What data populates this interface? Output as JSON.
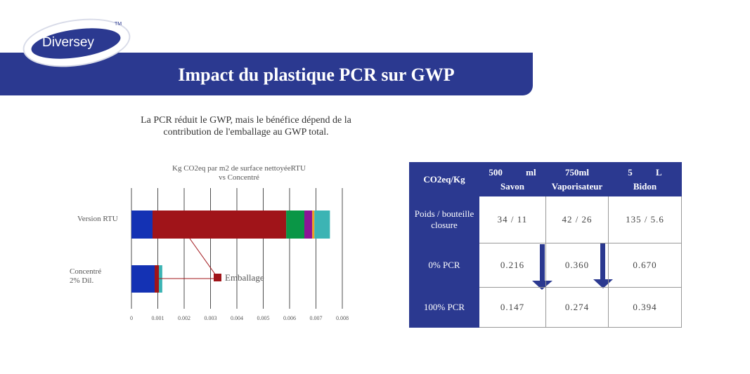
{
  "header": {
    "logo": "Diversey",
    "trademark": "TM",
    "title": "Impact du plastique PCR sur GWP",
    "subtitle": "La PCR réduit le GWP, mais le bénéfice dépend de la contribution de l'emballage au GWP total."
  },
  "chart_data": {
    "type": "stacked-hbar",
    "title": "Kg CO2eq par m2 de surface nettoyéeRTU vs Concentré",
    "categories": [
      "Version RTU",
      "Concentré 2% Dil."
    ],
    "series": [
      {
        "color": "#1432b4",
        "values": [
          0.0008,
          0.00088
        ]
      },
      {
        "name": "Emballage",
        "color": "#a01419",
        "values": [
          0.00507,
          0.00016
        ]
      },
      {
        "color": "#0a9646",
        "values": [
          0.00069,
          0
        ]
      },
      {
        "color": "#8c1496",
        "values": [
          0.0003,
          0
        ]
      },
      {
        "color": "#f0a01e",
        "values": [
          8e-05,
          0
        ]
      },
      {
        "color": "#3cb4b4",
        "values": [
          0.00059,
          0.00013
        ]
      }
    ],
    "xlim": [
      0,
      0.008
    ],
    "xticks": [
      0,
      0.001,
      0.002,
      0.003,
      0.004,
      0.005,
      0.006,
      0.007,
      0.008
    ],
    "grid": true
  },
  "table": {
    "header": [
      "CO2eq/Kg",
      "500 ml Savon",
      "750ml Vaporisateur",
      "5 L Bidon"
    ],
    "rows": [
      [
        "Poids / bouteille closure",
        "34 / 11",
        "42 / 26",
        "135 / 5.6"
      ],
      [
        "0% PCR",
        "0.216",
        "0.360",
        "0.670"
      ],
      [
        "100% PCR",
        "0.147",
        "0.274",
        "0.394"
      ]
    ]
  }
}
